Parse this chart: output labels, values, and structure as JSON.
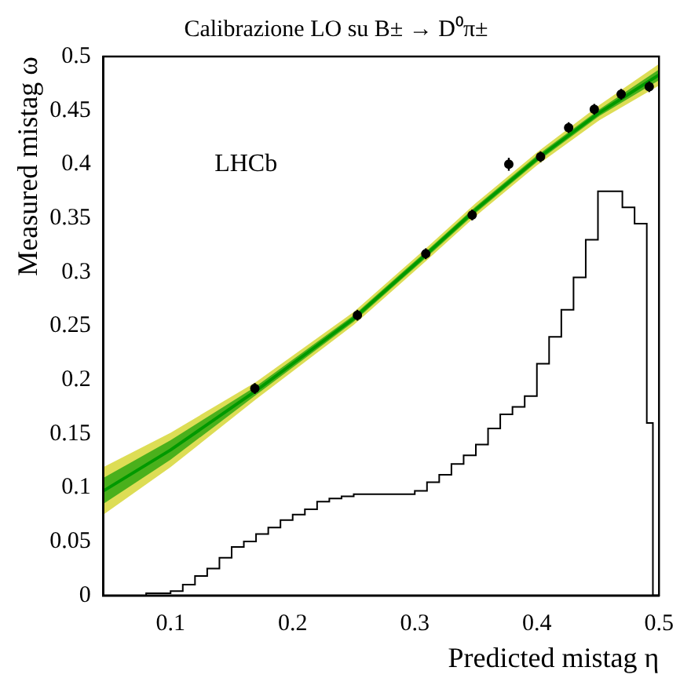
{
  "chart_data": {
    "type": "line",
    "title": "Calibrazione LO su B± → D⁰π±",
    "xlabel": "Predicted mistag η",
    "ylabel": "Measured mistag ω",
    "xlim": [
      0.045,
      0.5
    ],
    "xticks": [
      0.1,
      0.2,
      0.3,
      0.4,
      0.5
    ],
    "ylim": [
      0,
      0.5
    ],
    "yticks": [
      0,
      0.05,
      0.1,
      0.15,
      0.2,
      0.25,
      0.3,
      0.35,
      0.4,
      0.45,
      0.5
    ],
    "grid": false,
    "legend": false,
    "annotations": [
      "LHCb"
    ],
    "series": [
      {
        "type": "line",
        "color": "#cccc00",
        "marker": "none",
        "x": [
          0.045,
          0.1,
          0.17,
          0.25,
          0.31,
          0.35,
          0.4,
          0.45,
          0.5
        ],
        "values": [
          null,
          null,
          null,
          null,
          null,
          null,
          null,
          null,
          null
        ],
        "lower": [
          0.075,
          0.119,
          0.182,
          0.251,
          0.311,
          0.352,
          0.399,
          0.44,
          0.473
        ],
        "upper": [
          0.119,
          0.151,
          0.198,
          0.263,
          0.323,
          0.364,
          0.411,
          0.454,
          0.493
        ]
      },
      {
        "type": "line",
        "color": "#009900",
        "marker": "none",
        "x": [
          0.045,
          0.1,
          0.17,
          0.25,
          0.31,
          0.35,
          0.4,
          0.45,
          0.5
        ],
        "values": [
          0.097,
          0.135,
          0.19,
          0.257,
          0.317,
          0.358,
          0.405,
          0.447,
          0.483
        ],
        "lower": [
          0.085,
          0.126,
          0.186,
          0.254,
          0.314,
          0.355,
          0.402,
          0.444,
          0.478
        ],
        "upper": [
          0.109,
          0.144,
          0.194,
          0.26,
          0.32,
          0.361,
          0.408,
          0.45,
          0.488
        ]
      },
      {
        "type": "scatter",
        "color": "#000000",
        "marker": "circle",
        "x": [
          0.169,
          0.253,
          0.309,
          0.347,
          0.377,
          0.403,
          0.426,
          0.447,
          0.469,
          0.492
        ],
        "values": [
          0.192,
          0.26,
          0.317,
          0.353,
          0.4,
          0.407,
          0.434,
          0.451,
          0.465,
          0.472
        ],
        "errors": [
          0.005,
          0.005,
          0.005,
          0.005,
          0.006,
          0.005,
          0.005,
          0.005,
          0.005,
          0.005
        ]
      },
      {
        "type": "histogram",
        "color": "#000000",
        "bins": [
          0.08,
          0.1,
          0.11,
          0.12,
          0.13,
          0.14,
          0.15,
          0.16,
          0.17,
          0.18,
          0.19,
          0.2,
          0.21,
          0.22,
          0.23,
          0.24,
          0.25,
          0.3,
          0.31,
          0.32,
          0.33,
          0.34,
          0.35,
          0.36,
          0.37,
          0.38,
          0.39,
          0.4,
          0.41,
          0.42,
          0.43,
          0.44,
          0.45,
          0.46,
          0.47,
          0.48,
          0.49,
          0.495,
          0.5
        ],
        "values": [
          0.002,
          0.004,
          0.01,
          0.018,
          0.025,
          0.035,
          0.045,
          0.05,
          0.057,
          0.063,
          0.07,
          0.075,
          0.08,
          0.087,
          0.09,
          0.092,
          0.094,
          0.097,
          0.105,
          0.112,
          0.122,
          0.13,
          0.14,
          0.155,
          0.168,
          0.175,
          0.185,
          0.215,
          0.24,
          0.265,
          0.295,
          0.33,
          0.375,
          0.375,
          0.36,
          0.345,
          0.16,
          0
        ]
      }
    ]
  }
}
